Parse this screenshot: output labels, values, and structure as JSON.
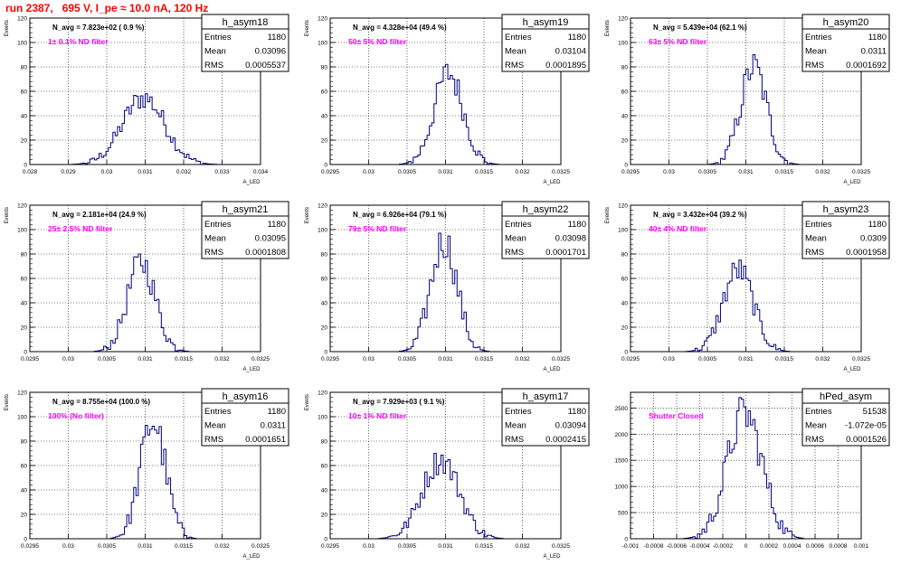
{
  "page_title": "run 2387,   695 V, I_pe ≈ 10.0 nA, 120 Hz",
  "colors": {
    "histogram": "#000080",
    "filter_note": "#ff00ff",
    "title": "#ff0000",
    "grid": "#000000"
  },
  "chart_data": [
    {
      "type": "histogram",
      "name": "h_asym18",
      "title": "N_avg = 7.823e+02 ( 0.9 %)",
      "note": "1± 0.1% ND filter",
      "stats": [
        {
          "label": "Entries",
          "value": "1180"
        },
        {
          "label": "Mean",
          "value": "0.03096"
        },
        {
          "label": "RMS",
          "value": "0.0005537"
        }
      ],
      "ylabel": "Events",
      "xlabel": "A_LED",
      "xlim": [
        0.028,
        0.034
      ],
      "ylim": [
        0,
        120
      ],
      "xticks": [
        "0.028",
        "0.029",
        "0.03",
        "0.031",
        "0.032",
        "0.033",
        "0.034"
      ],
      "yticks": [
        "0",
        "20",
        "40",
        "60",
        "80",
        "100",
        "120"
      ],
      "mean": 0.03096,
      "rms": 0.0005537,
      "peak": 58,
      "entries": 1180,
      "bins": 100
    },
    {
      "type": "histogram",
      "name": "h_asym19",
      "title": "N_avg = 4.328e+04 (49.4 %)",
      "note": "50± 5% ND filter",
      "stats": [
        {
          "label": "Entries",
          "value": "1180"
        },
        {
          "label": "Mean",
          "value": "0.03104"
        },
        {
          "label": "RMS",
          "value": "0.0001895"
        }
      ],
      "ylabel": "Events",
      "xlabel": "A_LED",
      "xlim": [
        0.0295,
        0.0325
      ],
      "ylim": [
        0,
        120
      ],
      "xticks": [
        "0.0295",
        "0.03",
        "0.0305",
        "0.031",
        "0.0315",
        "0.032",
        "0.0325"
      ],
      "yticks": [
        "0",
        "20",
        "40",
        "60",
        "80",
        "100",
        "120"
      ],
      "mean": 0.03104,
      "rms": 0.0001895,
      "peak": 82,
      "entries": 1180,
      "bins": 100
    },
    {
      "type": "histogram",
      "name": "h_asym20",
      "title": "N_avg = 5.439e+04 (62.1 %)",
      "note": "63± 5% ND filter",
      "stats": [
        {
          "label": "Entries",
          "value": "1180"
        },
        {
          "label": "Mean",
          "value": "0.0311"
        },
        {
          "label": "RMS",
          "value": "0.0001692"
        }
      ],
      "ylabel": "Events",
      "xlabel": "A_LED",
      "xlim": [
        0.0295,
        0.0325
      ],
      "ylim": [
        0,
        120
      ],
      "xticks": [
        "0.0295",
        "0.03",
        "0.0305",
        "0.031",
        "0.0315",
        "0.032",
        "0.0325"
      ],
      "yticks": [
        "0",
        "20",
        "40",
        "60",
        "80",
        "100",
        "120"
      ],
      "mean": 0.0311,
      "rms": 0.0001692,
      "peak": 90,
      "entries": 1180,
      "bins": 100
    },
    {
      "type": "histogram",
      "name": "h_asym21",
      "title": "N_avg = 2.181e+04 (24.9 %)",
      "note": "25± 2.5% ND filter",
      "stats": [
        {
          "label": "Entries",
          "value": "1180"
        },
        {
          "label": "Mean",
          "value": "0.03095"
        },
        {
          "label": "RMS",
          "value": "0.0001808"
        }
      ],
      "ylabel": "Events",
      "xlabel": "A_LED",
      "xlim": [
        0.0295,
        0.0325
      ],
      "ylim": [
        0,
        120
      ],
      "xticks": [
        "0.0295",
        "0.03",
        "0.0305",
        "0.031",
        "0.0315",
        "0.032",
        "0.0325"
      ],
      "yticks": [
        "0",
        "20",
        "40",
        "60",
        "80",
        "100",
        "120"
      ],
      "mean": 0.03095,
      "rms": 0.0001808,
      "peak": 80,
      "entries": 1180,
      "bins": 100
    },
    {
      "type": "histogram",
      "name": "h_asym22",
      "title": "N_avg = 6.926e+04 (79.1 %)",
      "note": "79± 5% ND filter",
      "stats": [
        {
          "label": "Entries",
          "value": "1180"
        },
        {
          "label": "Mean",
          "value": "0.03098"
        },
        {
          "label": "RMS",
          "value": "0.0001701"
        }
      ],
      "ylabel": "Events",
      "xlabel": "A_LED",
      "xlim": [
        0.0295,
        0.0325
      ],
      "ylim": [
        0,
        120
      ],
      "xticks": [
        "0.0295",
        "0.03",
        "0.0305",
        "0.031",
        "0.0315",
        "0.032",
        "0.0325"
      ],
      "yticks": [
        "0",
        "20",
        "40",
        "60",
        "80",
        "100",
        "120"
      ],
      "mean": 0.03098,
      "rms": 0.0001701,
      "peak": 97,
      "entries": 1180,
      "bins": 100
    },
    {
      "type": "histogram",
      "name": "h_asym23",
      "title": "N_avg = 3.432e+04 (39.2 %)",
      "note": "40± 4% ND filter",
      "stats": [
        {
          "label": "Entries",
          "value": "1180"
        },
        {
          "label": "Mean",
          "value": "0.0309"
        },
        {
          "label": "RMS",
          "value": "0.0001958"
        }
      ],
      "ylabel": "Events",
      "xlabel": "A_LED",
      "xlim": [
        0.0295,
        0.0325
      ],
      "ylim": [
        0,
        120
      ],
      "xticks": [
        "0.0295",
        "0.03",
        "0.0305",
        "0.031",
        "0.0315",
        "0.032",
        "0.0325"
      ],
      "yticks": [
        "0",
        "20",
        "40",
        "60",
        "80",
        "100",
        "120"
      ],
      "mean": 0.0309,
      "rms": 0.0001958,
      "peak": 75,
      "entries": 1180,
      "bins": 100
    },
    {
      "type": "histogram",
      "name": "h_asym16",
      "title": "N_avg = 8.755e+04 (100.0 %)",
      "note": "100% (No filter)",
      "stats": [
        {
          "label": "Entries",
          "value": "1180"
        },
        {
          "label": "Mean",
          "value": "0.0311"
        },
        {
          "label": "RMS",
          "value": "0.0001651"
        }
      ],
      "ylabel": "Events",
      "xlabel": "A_LED",
      "xlim": [
        0.0295,
        0.0325
      ],
      "ylim": [
        0,
        120
      ],
      "xticks": [
        "0.0295",
        "0.03",
        "0.0305",
        "0.031",
        "0.0315",
        "0.032",
        "0.0325"
      ],
      "yticks": [
        "0",
        "20",
        "40",
        "60",
        "80",
        "100",
        "120"
      ],
      "mean": 0.0311,
      "rms": 0.0001651,
      "peak": 93,
      "entries": 1180,
      "bins": 100
    },
    {
      "type": "histogram",
      "name": "h_asym17",
      "title": "N_avg = 7.929e+03 ( 9.1 %)",
      "note": "10± 1% ND filter",
      "stats": [
        {
          "label": "Entries",
          "value": "1180"
        },
        {
          "label": "Mean",
          "value": "0.03094"
        },
        {
          "label": "RMS",
          "value": "0.0002415"
        }
      ],
      "ylabel": "Events",
      "xlabel": "A_LED",
      "xlim": [
        0.0295,
        0.0325
      ],
      "ylim": [
        0,
        120
      ],
      "xticks": [
        "0.0295",
        "0.03",
        "0.0305",
        "0.031",
        "0.0315",
        "0.032",
        "0.0325"
      ],
      "yticks": [
        "0",
        "20",
        "40",
        "60",
        "80",
        "100",
        "120"
      ],
      "mean": 0.03094,
      "rms": 0.0002415,
      "peak": 70,
      "entries": 1180,
      "bins": 100
    },
    {
      "type": "histogram",
      "name": "hPed_asym",
      "title": "",
      "note": "Shutter Closed",
      "stats": [
        {
          "label": "Entries",
          "value": "51538"
        },
        {
          "label": "Mean",
          "value": "-1.072e-05"
        },
        {
          "label": "RMS",
          "value": "0.0001526"
        }
      ],
      "ylabel": "",
      "xlabel": "",
      "xlim": [
        -0.001,
        0.001
      ],
      "ylim": [
        0,
        2800
      ],
      "xticks": [
        "-0.001",
        "-0.0008",
        "-0.0006",
        "-0.0004",
        "-0.0002",
        "0",
        "0.0002",
        "0.0004",
        "0.0006",
        "0.0008",
        "0.001"
      ],
      "yticks": [
        "0",
        "500",
        "1000",
        "1500",
        "2000",
        "2500"
      ],
      "mean": -1.072e-05,
      "rms": 0.0001526,
      "peak": 2700,
      "entries": 51538,
      "bins": 100
    }
  ]
}
